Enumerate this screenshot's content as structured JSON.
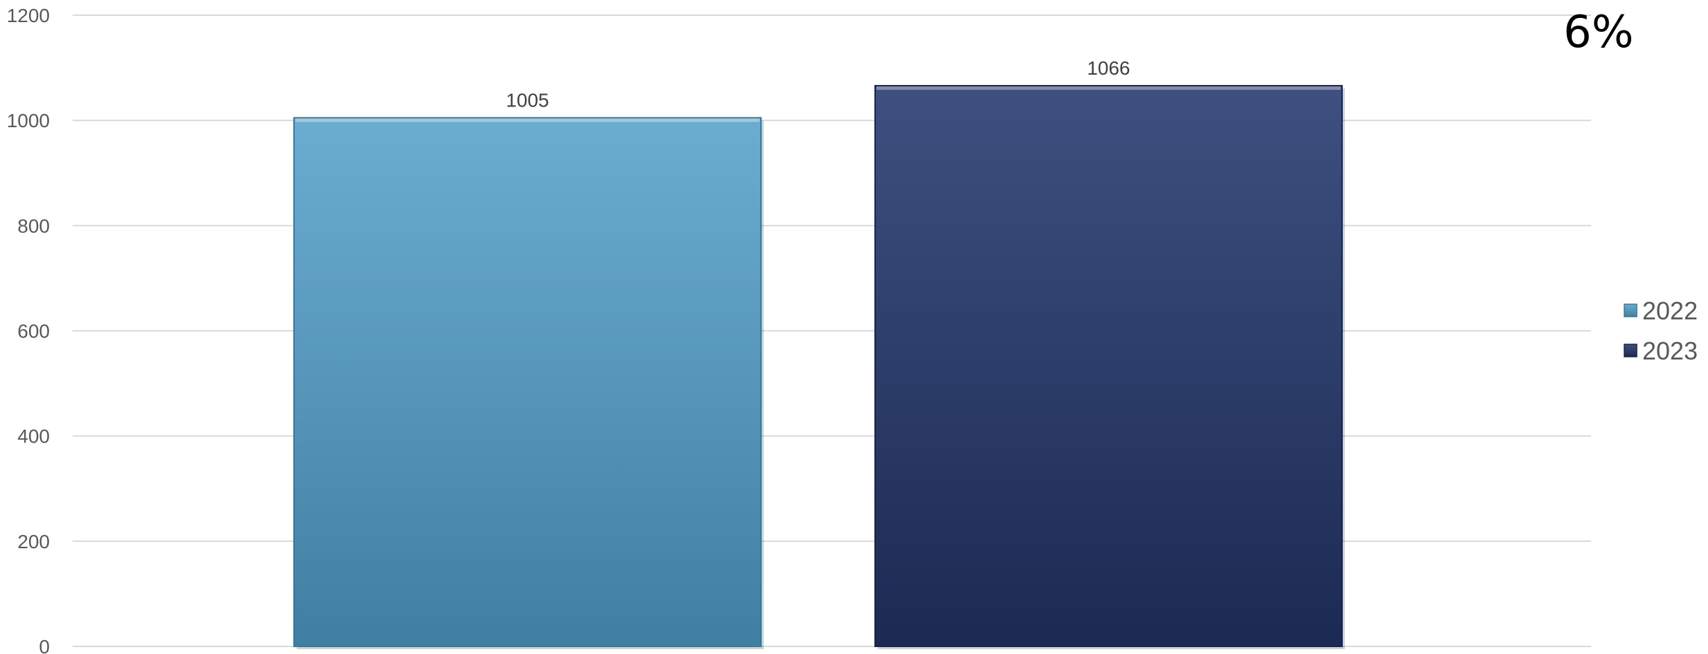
{
  "chart_data": {
    "type": "bar",
    "title": "",
    "xlabel": "",
    "ylabel": "",
    "categories": [
      ""
    ],
    "series": [
      {
        "name": "2022",
        "values": [
          1005
        ],
        "color": "#4f9bc1"
      },
      {
        "name": "2023",
        "values": [
          1066
        ],
        "color": "#2a3a68"
      }
    ],
    "ylim": [
      0,
      1200
    ],
    "yticks": [
      0,
      200,
      400,
      600,
      800,
      1000,
      1200
    ],
    "tick_labels": [
      "0",
      "200",
      "400",
      "600",
      "800",
      "1000",
      "1200"
    ],
    "data_labels": [
      "1005",
      "1066"
    ],
    "grid": true,
    "legend_position": "right",
    "annotation": "6%"
  }
}
